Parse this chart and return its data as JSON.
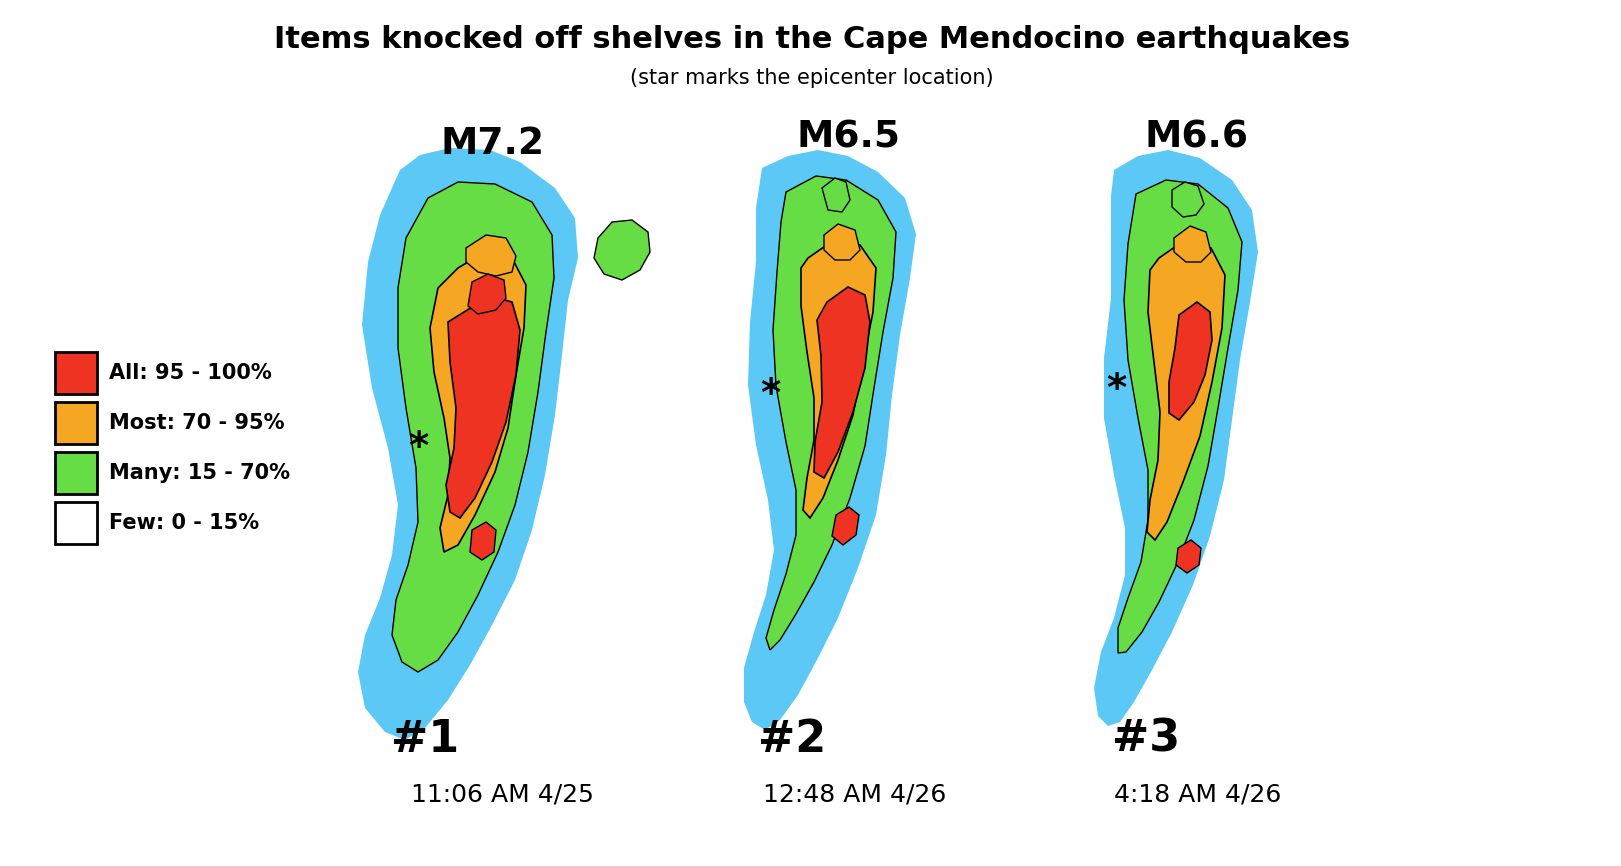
{
  "title": "Items knocked off shelves in the Cape Mendocino earthquakes",
  "subtitle": "(star marks the epicenter location)",
  "background_color": "#ffffff",
  "title_fontsize": 22,
  "subtitle_fontsize": 15,
  "colors": {
    "blue": "#5bc8f5",
    "green": "#66dd44",
    "orange": "#f5a623",
    "red": "#ee3322",
    "white": "#ffffff",
    "black": "#000000"
  },
  "legend": {
    "labels": [
      "All: 95 - 100%",
      "Most: 70 - 95%",
      "Many: 15 - 70%",
      "Few: 0 - 15%"
    ],
    "colors": [
      "#ee3322",
      "#f5a623",
      "#66dd44",
      "#ffffff"
    ]
  },
  "earthquakes": [
    {
      "label": "#1",
      "magnitude": "M7.2",
      "time": "11:06 AM 4/25"
    },
    {
      "label": "#2",
      "magnitude": "M6.5",
      "time": "12:48 AM 4/26"
    },
    {
      "label": "#3",
      "magnitude": "M6.6",
      "time": "4:18 AM 4/26"
    }
  ]
}
